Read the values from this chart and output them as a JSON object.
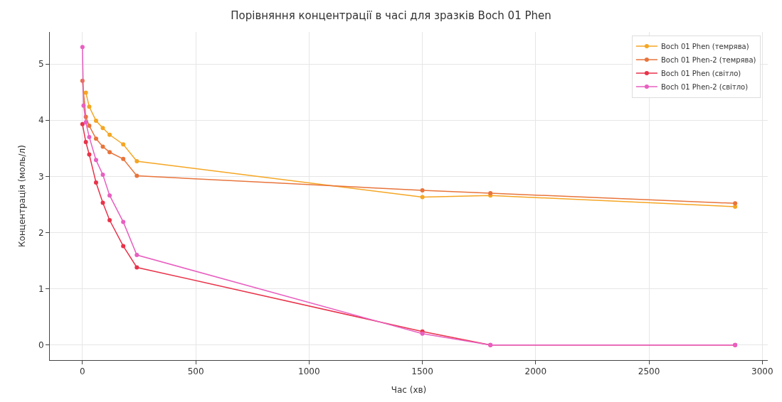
{
  "chart_data": {
    "type": "line",
    "title": "Порівняння концентрації в часі для зразків Boch 01 Phen",
    "xlabel": "Час (хв)",
    "ylabel": "Концентрація (моль/л)",
    "series": [
      {
        "name": "Boch 01 Phen (темрява)",
        "color": "#f5a623",
        "x": [
          15,
          30,
          60,
          90,
          120,
          180,
          240,
          1500,
          1800,
          2880
        ],
        "values": [
          4.49,
          4.24,
          3.99,
          3.86,
          3.74,
          3.57,
          3.27,
          2.63,
          2.66,
          2.46
        ]
      },
      {
        "name": "Boch 01 Phen-2 (темрява)",
        "color": "#e8743b",
        "x": [
          0,
          15,
          30,
          60,
          90,
          120,
          180,
          240,
          1500,
          1800,
          2880
        ],
        "values": [
          4.7,
          4.06,
          3.9,
          3.67,
          3.53,
          3.43,
          3.31,
          3.01,
          2.75,
          2.7,
          2.52
        ]
      },
      {
        "name": "Boch 01 Phen (світло)",
        "color": "#e8334a",
        "x": [
          0,
          15,
          30,
          60,
          90,
          120,
          180,
          240,
          1500,
          1800,
          2880
        ],
        "values": [
          3.93,
          3.61,
          3.39,
          2.89,
          2.53,
          2.22,
          1.76,
          1.38,
          0.24,
          0.0,
          0.0
        ]
      },
      {
        "name": "Boch 01 Phen-2 (світло)",
        "color": "#e85fc0",
        "x": [
          0,
          5,
          15,
          30,
          60,
          90,
          120,
          180,
          240,
          1500,
          1800,
          2880
        ],
        "values": [
          5.3,
          4.26,
          3.96,
          3.7,
          3.29,
          3.03,
          2.66,
          2.19,
          1.6,
          0.2,
          0.0,
          0.0
        ]
      }
    ],
    "xlim": [
      -144,
      3024
    ],
    "xticks": [
      0,
      500,
      1000,
      1500,
      2000,
      2500,
      3000
    ],
    "ylim": [
      -0.27,
      5.57
    ],
    "yticks": [
      0,
      1,
      2,
      3,
      4,
      5
    ],
    "grid": true,
    "legend": "top right",
    "marker": "circle",
    "line_style": "solid"
  }
}
